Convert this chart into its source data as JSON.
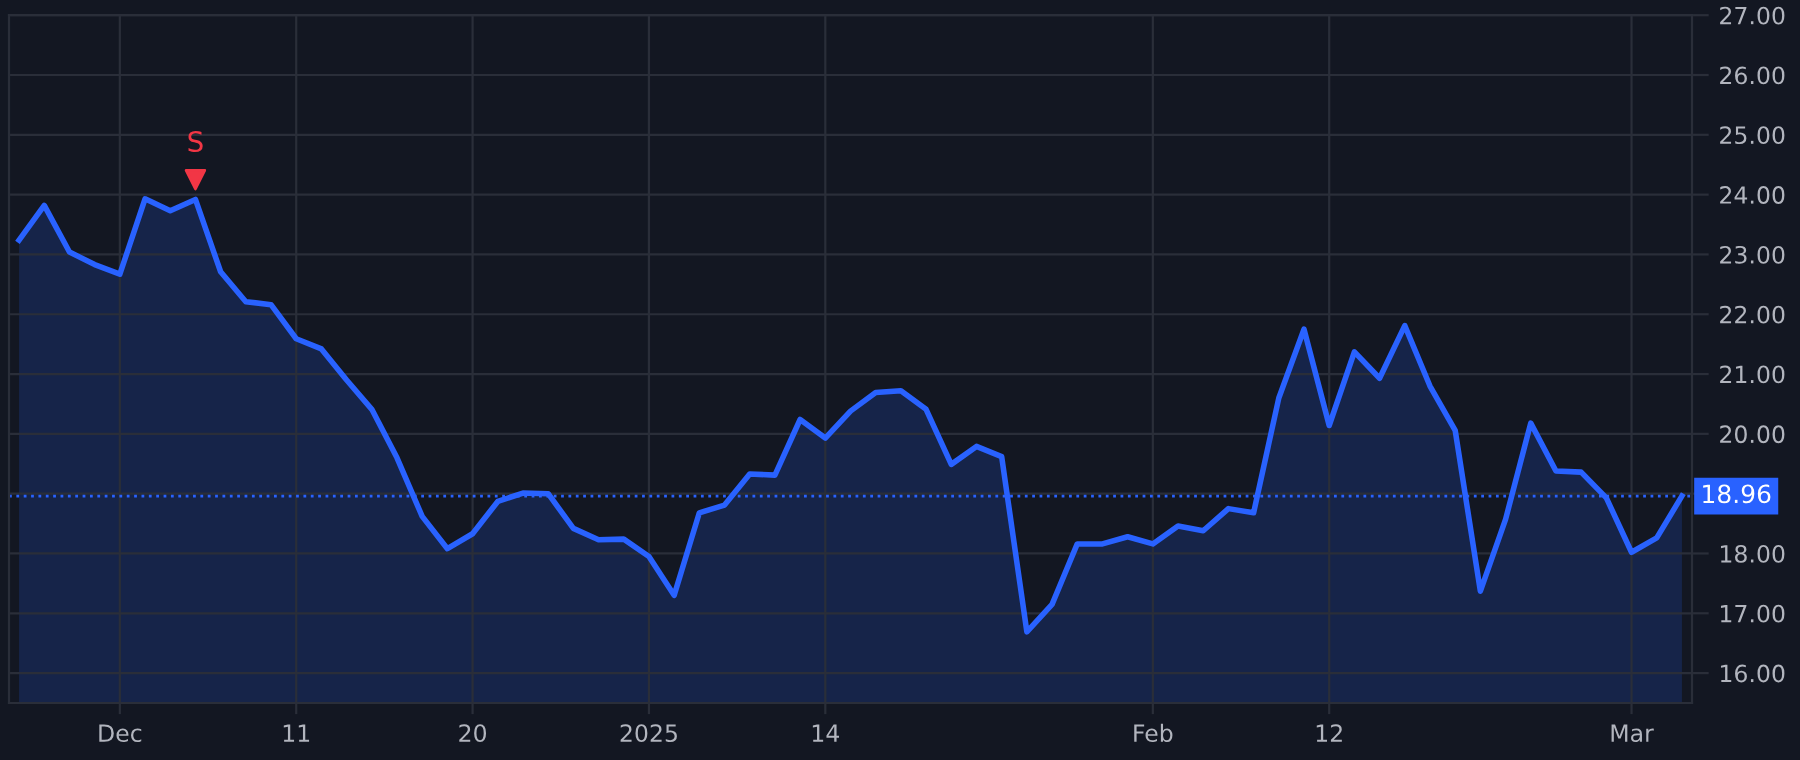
{
  "chart_data": {
    "type": "area",
    "categories": [
      null,
      null,
      null,
      null,
      "Dec",
      null,
      null,
      null,
      null,
      null,
      null,
      "11",
      null,
      null,
      null,
      null,
      null,
      null,
      "20",
      null,
      null,
      null,
      null,
      null,
      null,
      "2025",
      null,
      null,
      null,
      null,
      null,
      null,
      "14",
      null,
      null,
      null,
      null,
      null,
      null,
      null,
      null,
      null,
      null,
      null,
      null,
      "Feb",
      null,
      null,
      null,
      null,
      null,
      null,
      "12",
      null,
      null,
      null,
      null,
      null,
      null,
      null,
      null,
      null,
      null,
      null,
      "Mar",
      null,
      null
    ],
    "series": [
      {
        "color": "#2962ff",
        "values": [
          23.24,
          23.82,
          23.04,
          22.83,
          22.67,
          23.93,
          23.73,
          23.92,
          22.71,
          22.21,
          22.16,
          21.59,
          21.42,
          20.9,
          20.41,
          19.6,
          18.62,
          18.08,
          18.33,
          18.87,
          19.01,
          19.0,
          18.42,
          18.23,
          18.24,
          17.95,
          17.3,
          18.68,
          18.81,
          19.33,
          19.31,
          20.24,
          19.93,
          20.38,
          20.69,
          20.72,
          20.41,
          19.49,
          19.79,
          19.62,
          16.69,
          17.15,
          18.16,
          18.16,
          18.28,
          18.16,
          18.46,
          18.38,
          18.75,
          18.68,
          20.6,
          21.75,
          20.14,
          21.37,
          20.93,
          21.81,
          20.8,
          20.06,
          17.37,
          18.57,
          20.18,
          19.38,
          19.36,
          18.93,
          18.02,
          18.26,
          18.96
        ]
      },
      {
        "type": "scatter",
        "name": "S",
        "color": "#f23645",
        "marker": "triangle",
        "values": [
          null,
          null,
          null,
          null,
          null,
          null,
          null,
          24.25,
          null,
          null,
          null,
          null,
          null,
          null,
          null,
          null,
          null,
          null,
          null,
          null,
          null,
          null,
          null,
          null,
          null,
          null,
          null,
          null,
          null,
          null,
          null,
          null,
          null,
          null,
          null,
          null,
          null,
          null,
          null,
          null,
          null,
          null,
          null,
          null,
          null,
          null,
          null,
          null,
          null,
          null,
          null,
          null,
          null,
          null,
          null,
          null,
          null,
          null,
          null,
          null,
          null,
          null,
          null,
          null,
          null,
          null,
          null
        ]
      }
    ],
    "ylim": [
      15.5,
      27.0
    ],
    "yticks": [
      {
        "value": 16,
        "label": "16.00"
      },
      {
        "value": 17,
        "label": "17.00"
      },
      {
        "value": 18,
        "label": "18.00"
      },
      {
        "value": 19,
        "label": null
      },
      {
        "value": 20,
        "label": "20.00"
      },
      {
        "value": 21,
        "label": "21.00"
      },
      {
        "value": 22,
        "label": "22.00"
      },
      {
        "value": 23,
        "label": "23.00"
      },
      {
        "value": 24,
        "label": "24.00"
      },
      {
        "value": 25,
        "label": "25.00"
      },
      {
        "value": 26,
        "label": "26.00"
      },
      {
        "value": 27,
        "label": "27.00"
      }
    ],
    "ref_lines": [
      {
        "axis": "y",
        "value": 18.96,
        "label": "18.96",
        "color": "#2962ff",
        "line_style": "dotted"
      }
    ],
    "grid": true
  }
}
